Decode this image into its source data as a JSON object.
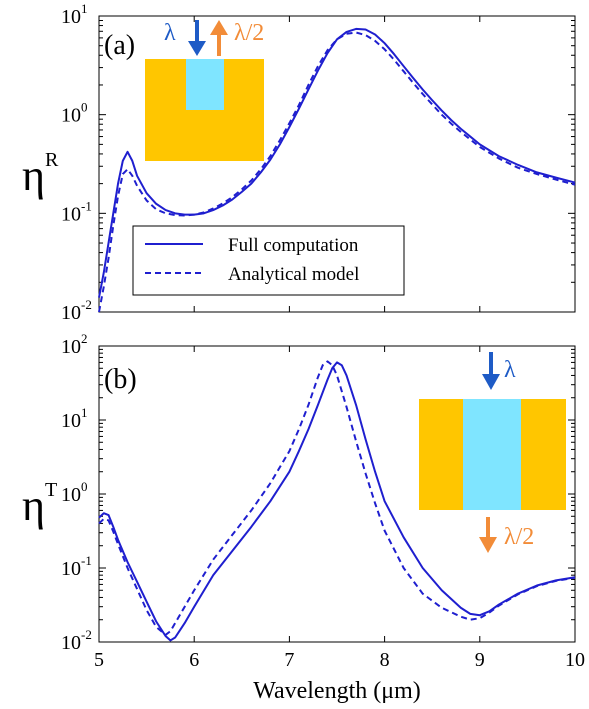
{
  "chart_data": [
    {
      "panel_label": "(a)",
      "type": "line",
      "ylabel": "η",
      "ylabel_sup": "R",
      "yscale": "log",
      "xlim": [
        5,
        10
      ],
      "ylim_exp": [
        -2,
        1
      ],
      "xticks": [
        "",
        "",
        "",
        "",
        "",
        ""
      ],
      "yticks": [
        {
          "exp": -2,
          "base": "10",
          "sup": "-2"
        },
        {
          "exp": -1,
          "base": "10",
          "sup": "-1"
        },
        {
          "exp": 0,
          "base": "10",
          "sup": "0"
        },
        {
          "exp": 1,
          "base": "10",
          "sup": "1"
        }
      ],
      "legend": {
        "placement": "lower-center",
        "entries": [
          {
            "label": "Full computation",
            "style": "solid"
          },
          {
            "label": "Analytical model",
            "style": "dashed"
          }
        ]
      },
      "inset": {
        "in_label": "λ",
        "out_label": "λ/2",
        "placement": "upper-left"
      },
      "series": [
        {
          "name": "Full computation",
          "style": "solid",
          "x": [
            5.0,
            5.05,
            5.1,
            5.15,
            5.2,
            5.25,
            5.3,
            5.35,
            5.4,
            5.5,
            5.6,
            5.7,
            5.8,
            5.9,
            6.0,
            6.1,
            6.2,
            6.3,
            6.4,
            6.5,
            6.6,
            6.7,
            6.8,
            6.9,
            7.0,
            7.1,
            7.2,
            7.3,
            7.4,
            7.5,
            7.6,
            7.7,
            7.8,
            7.9,
            8.0,
            8.1,
            8.2,
            8.3,
            8.4,
            8.5,
            8.6,
            8.7,
            8.8,
            8.9,
            9.0,
            9.2,
            9.4,
            9.6,
            9.8,
            10.0
          ],
          "y": [
            0.014,
            0.025,
            0.05,
            0.1,
            0.2,
            0.34,
            0.42,
            0.34,
            0.24,
            0.16,
            0.125,
            0.108,
            0.1,
            0.097,
            0.097,
            0.1,
            0.108,
            0.12,
            0.138,
            0.165,
            0.2,
            0.26,
            0.35,
            0.5,
            0.75,
            1.15,
            1.8,
            2.8,
            4.2,
            5.8,
            6.9,
            7.4,
            7.3,
            6.5,
            5.3,
            4.1,
            3.1,
            2.35,
            1.8,
            1.4,
            1.1,
            0.88,
            0.72,
            0.6,
            0.5,
            0.38,
            0.31,
            0.26,
            0.23,
            0.205
          ]
        },
        {
          "name": "Analytical model",
          "style": "dashed",
          "x": [
            5.0,
            5.05,
            5.1,
            5.15,
            5.2,
            5.25,
            5.3,
            5.35,
            5.4,
            5.5,
            5.6,
            5.7,
            5.8,
            5.9,
            6.0,
            6.1,
            6.2,
            6.3,
            6.4,
            6.5,
            6.6,
            6.7,
            6.8,
            6.9,
            7.0,
            7.1,
            7.2,
            7.3,
            7.4,
            7.5,
            7.6,
            7.7,
            7.8,
            7.9,
            8.0,
            8.1,
            8.2,
            8.3,
            8.4,
            8.5,
            8.6,
            8.7,
            8.8,
            8.9,
            9.0,
            9.2,
            9.4,
            9.6,
            9.8,
            10.0
          ],
          "y": [
            0.01,
            0.018,
            0.035,
            0.075,
            0.15,
            0.25,
            0.28,
            0.24,
            0.19,
            0.135,
            0.11,
            0.1,
            0.096,
            0.095,
            0.097,
            0.102,
            0.112,
            0.126,
            0.146,
            0.175,
            0.215,
            0.28,
            0.38,
            0.55,
            0.82,
            1.25,
            2.0,
            3.1,
            4.5,
            5.8,
            6.6,
            6.8,
            6.4,
            5.6,
            4.6,
            3.6,
            2.75,
            2.1,
            1.62,
            1.27,
            1.0,
            0.81,
            0.67,
            0.56,
            0.47,
            0.36,
            0.29,
            0.25,
            0.22,
            0.195
          ]
        }
      ]
    },
    {
      "panel_label": "(b)",
      "type": "line",
      "ylabel": "η",
      "ylabel_sup": "T",
      "yscale": "log",
      "xlim": [
        5,
        10
      ],
      "ylim_exp": [
        -2,
        2
      ],
      "xlabel": "Wavelength (μm)",
      "xticks": [
        "5",
        "6",
        "7",
        "8",
        "9",
        "10"
      ],
      "yticks": [
        {
          "exp": -2,
          "base": "10",
          "sup": "-2"
        },
        {
          "exp": -1,
          "base": "10",
          "sup": "-1"
        },
        {
          "exp": 0,
          "base": "10",
          "sup": "0"
        },
        {
          "exp": 1,
          "base": "10",
          "sup": "1"
        },
        {
          "exp": 2,
          "base": "10",
          "sup": "2"
        }
      ],
      "inset": {
        "in_label": "λ",
        "out_label": "λ/2",
        "placement": "upper-right"
      },
      "series": [
        {
          "name": "Full computation",
          "style": "solid",
          "x": [
            5.0,
            5.05,
            5.1,
            5.15,
            5.2,
            5.3,
            5.4,
            5.5,
            5.6,
            5.7,
            5.75,
            5.8,
            5.9,
            6.0,
            6.2,
            6.4,
            6.6,
            6.8,
            7.0,
            7.1,
            7.2,
            7.3,
            7.4,
            7.45,
            7.5,
            7.55,
            7.6,
            7.7,
            7.8,
            7.9,
            8.0,
            8.2,
            8.4,
            8.6,
            8.8,
            8.9,
            9.0,
            9.1,
            9.2,
            9.4,
            9.6,
            9.8,
            10.0
          ],
          "y": [
            0.48,
            0.55,
            0.52,
            0.36,
            0.24,
            0.12,
            0.065,
            0.035,
            0.019,
            0.012,
            0.0105,
            0.0115,
            0.018,
            0.03,
            0.08,
            0.17,
            0.36,
            0.8,
            2.0,
            3.8,
            7.5,
            16,
            35,
            50,
            60,
            55,
            40,
            16,
            5.5,
            2.0,
            0.8,
            0.26,
            0.1,
            0.05,
            0.029,
            0.024,
            0.023,
            0.026,
            0.032,
            0.045,
            0.058,
            0.068,
            0.075
          ]
        },
        {
          "name": "Analytical model",
          "style": "dashed",
          "x": [
            5.0,
            5.05,
            5.1,
            5.15,
            5.2,
            5.3,
            5.4,
            5.5,
            5.6,
            5.7,
            5.75,
            5.8,
            5.9,
            6.0,
            6.2,
            6.4,
            6.6,
            6.8,
            7.0,
            7.1,
            7.2,
            7.3,
            7.35,
            7.4,
            7.45,
            7.5,
            7.6,
            7.7,
            7.8,
            7.9,
            8.0,
            8.2,
            8.4,
            8.6,
            8.8,
            8.9,
            9.0,
            9.1,
            9.2,
            9.4,
            9.6,
            9.8,
            10.0
          ],
          "y": [
            0.4,
            0.46,
            0.44,
            0.31,
            0.21,
            0.1,
            0.052,
            0.027,
            0.016,
            0.0125,
            0.014,
            0.018,
            0.03,
            0.05,
            0.13,
            0.28,
            0.6,
            1.4,
            3.8,
            7.5,
            16,
            38,
            55,
            62,
            55,
            40,
            15,
            5.2,
            1.9,
            0.75,
            0.32,
            0.1,
            0.045,
            0.029,
            0.022,
            0.02,
            0.021,
            0.025,
            0.031,
            0.044,
            0.057,
            0.067,
            0.074
          ]
        }
      ]
    }
  ]
}
